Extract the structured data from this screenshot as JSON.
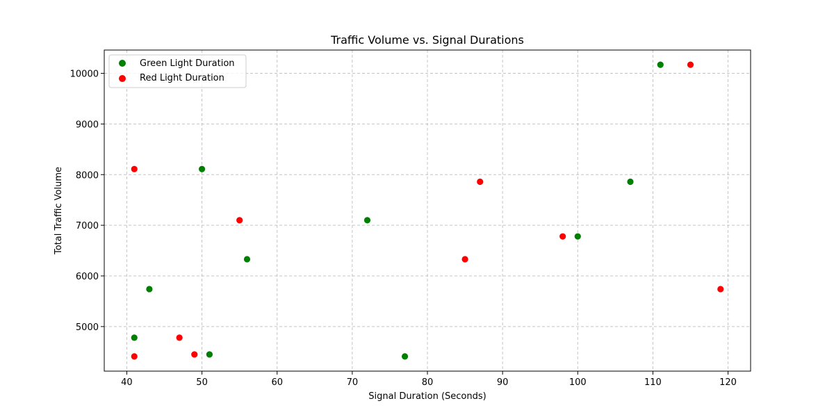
{
  "chart_data": {
    "type": "scatter",
    "title": "Traffic Volume vs. Signal Durations",
    "xlabel": "Signal Duration (Seconds)",
    "ylabel": "Total Traffic Volume",
    "xlim": [
      37,
      123
    ],
    "ylim": [
      4120,
      10460
    ],
    "xticks": [
      40,
      50,
      60,
      70,
      80,
      90,
      100,
      110,
      120
    ],
    "yticks": [
      5000,
      6000,
      7000,
      8000,
      9000,
      10000
    ],
    "grid": true,
    "legend_position": "upper-left",
    "series": [
      {
        "name": "Green Light Duration",
        "color": "#008000",
        "points": [
          {
            "x": 111,
            "y": 10170
          },
          {
            "x": 50,
            "y": 8110
          },
          {
            "x": 107,
            "y": 7860
          },
          {
            "x": 72,
            "y": 7100
          },
          {
            "x": 100,
            "y": 6780
          },
          {
            "x": 56,
            "y": 6330
          },
          {
            "x": 43,
            "y": 5740
          },
          {
            "x": 41,
            "y": 4780
          },
          {
            "x": 51,
            "y": 4450
          },
          {
            "x": 77,
            "y": 4410
          }
        ]
      },
      {
        "name": "Red Light Duration",
        "color": "#ff0000",
        "points": [
          {
            "x": 115,
            "y": 10170
          },
          {
            "x": 41,
            "y": 8110
          },
          {
            "x": 87,
            "y": 7860
          },
          {
            "x": 55,
            "y": 7100
          },
          {
            "x": 98,
            "y": 6780
          },
          {
            "x": 85,
            "y": 6330
          },
          {
            "x": 119,
            "y": 5740
          },
          {
            "x": 47,
            "y": 4780
          },
          {
            "x": 49,
            "y": 4450
          },
          {
            "x": 41,
            "y": 4410
          }
        ]
      }
    ]
  }
}
